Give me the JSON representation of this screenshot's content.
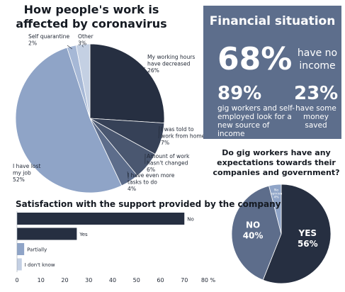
{
  "chart_data": [
    {
      "type": "pie",
      "title": "How people's work is affected by coronavirus",
      "slices": [
        {
          "label": "My working hours have decreased",
          "value": 26,
          "value_label": "26%",
          "color": "#262f41"
        },
        {
          "label": "I was told to work from home",
          "value": 7,
          "value_label": "7%",
          "color": "#364157"
        },
        {
          "label": "Amount of work hasn't changed",
          "value": 6,
          "value_label": "6%",
          "color": "#4a5770"
        },
        {
          "label": "I have even more tasks to do",
          "value": 4,
          "value_label": "4%",
          "color": "#5d6d8b"
        },
        {
          "label": "I have lost my job",
          "value": 52,
          "value_label": "52%",
          "color": "#8fa4c7"
        },
        {
          "label": "Self quarantine",
          "value": 2,
          "value_label": "2%",
          "color": "#a6b8d6"
        },
        {
          "label": "Other",
          "value": 3,
          "value_label": "3%",
          "color": "#c4d0e3"
        }
      ]
    },
    {
      "type": "pie",
      "title": "Do gig workers have any expectations towards their companies and government?",
      "slices": [
        {
          "label": "YES",
          "value": 56,
          "value_label": "56%",
          "color": "#262f41"
        },
        {
          "label": "NO",
          "value": 40,
          "value_label": "40%",
          "color": "#5d6d8b"
        },
        {
          "label": "No opinion",
          "value": 4,
          "value_label": "4%",
          "color": "#8fa4c7"
        }
      ]
    },
    {
      "type": "bar",
      "orientation": "horizontal",
      "title": "Satisfaction with the support provided by the company",
      "categories": [
        "No",
        "Yes",
        "Partially",
        "I don't know"
      ],
      "values": [
        70,
        25,
        3,
        2
      ],
      "colors": [
        "#262f41",
        "#262f41",
        "#8fa4c7",
        "#c4d0e3"
      ],
      "xlim": [
        0,
        80
      ],
      "ticks": [
        0,
        10,
        20,
        30,
        40,
        50,
        60,
        70,
        80
      ],
      "tick_suffix": " %"
    }
  ],
  "financial": {
    "title": "Financial situation",
    "no_income_pct": "68%",
    "no_income_label": "have no income",
    "gig_pct": "89%",
    "gig_label": "gig workers and self-employed look for a new source of income",
    "saved_pct": "23%",
    "saved_label": "have some money saved"
  },
  "colors": {
    "box_bg": "#5d6e8c",
    "dark": "#262f41",
    "light": "#8fa4c7"
  }
}
